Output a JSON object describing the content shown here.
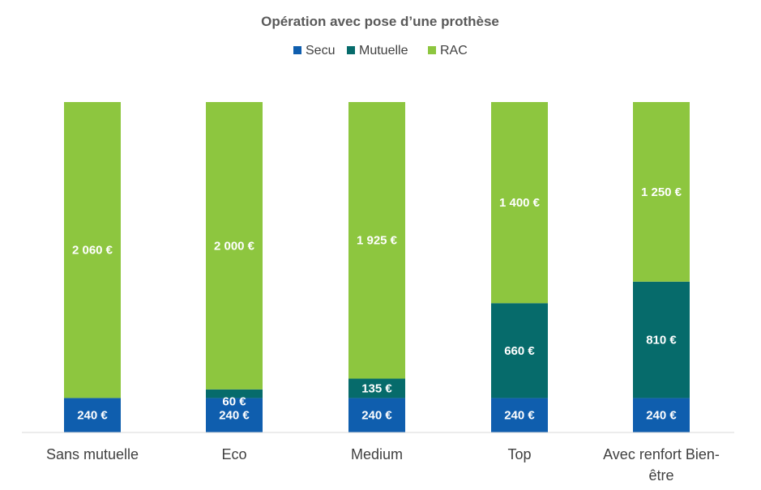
{
  "chart_data": {
    "type": "bar",
    "stacked": true,
    "title": "Opération avec pose d’une prothèse",
    "legend_position": "top",
    "grid": false,
    "categories": [
      [
        "Sans mutuelle"
      ],
      [
        "Eco"
      ],
      [
        "Medium"
      ],
      [
        "Top"
      ],
      [
        "Avec renfort Bien-",
        "être"
      ]
    ],
    "ylim": [
      0,
      2300
    ],
    "series": [
      {
        "name": "Secu",
        "color": "#0F5EAE",
        "values": [
          240,
          240,
          240,
          240,
          240
        ],
        "labels": [
          "240 €",
          "240 €",
          "240 €",
          "240 €",
          "240 €"
        ]
      },
      {
        "name": "Mutuelle",
        "color": "#066B6B",
        "values": [
          0,
          60,
          135,
          660,
          810
        ],
        "labels": [
          "",
          "60 €",
          "135 €",
          "660 €",
          "810 €"
        ]
      },
      {
        "name": "RAC",
        "color": "#8DC63F",
        "values": [
          2060,
          2000,
          1925,
          1400,
          1250
        ],
        "labels": [
          "2 060 €",
          "2 000 €",
          "1 925 €",
          "1 400 €",
          "1 250 €"
        ]
      }
    ]
  }
}
